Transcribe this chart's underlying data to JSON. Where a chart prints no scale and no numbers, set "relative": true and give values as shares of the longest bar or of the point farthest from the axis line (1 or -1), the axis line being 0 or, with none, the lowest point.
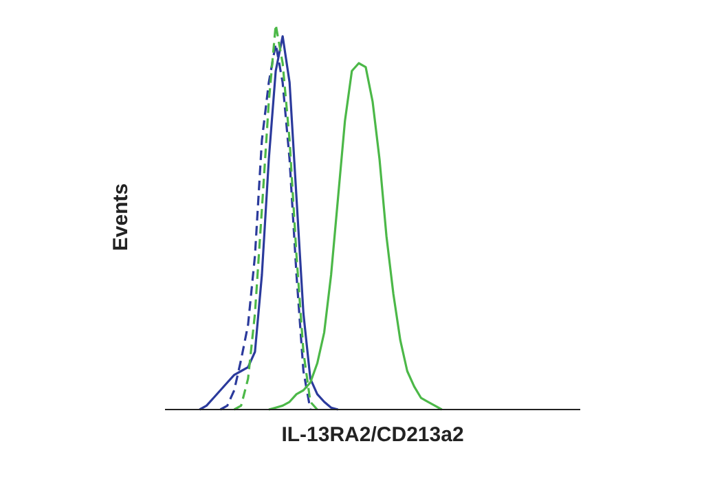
{
  "chart_data": {
    "type": "line",
    "xlabel": "IL-13RA2/CD213a2",
    "ylabel": "Events",
    "relative": true,
    "grid": false,
    "legend": false,
    "marker": "none",
    "categories": [
      null,
      null,
      null,
      null,
      null,
      null,
      null,
      null,
      null,
      null,
      null,
      null,
      null,
      null,
      null,
      null,
      null,
      null,
      null,
      null,
      null,
      null,
      null,
      null,
      null,
      null,
      null,
      null,
      null,
      null,
      null,
      null,
      null,
      null,
      null,
      null,
      null,
      null,
      null,
      null,
      null,
      null,
      null,
      null,
      null,
      null,
      null,
      null,
      null,
      null,
      null,
      null,
      null,
      null,
      null,
      null,
      null,
      null,
      null,
      null,
      null
    ],
    "series": [
      {
        "color": "#2b3a9c",
        "line_style": "solid",
        "values": [
          null,
          null,
          null,
          null,
          null,
          0,
          0.01,
          0.03,
          0.05,
          0.07,
          0.09,
          0.1,
          0.11,
          0.15,
          0.35,
          0.65,
          0.88,
          0.97,
          0.85,
          0.55,
          0.25,
          0.08,
          0.04,
          0.02,
          0.005,
          0,
          null,
          null,
          null,
          null,
          null,
          null,
          null,
          null,
          null,
          null,
          null,
          null,
          null,
          null,
          null,
          null,
          null,
          null,
          null,
          null,
          null,
          null,
          null,
          null,
          null,
          null,
          null,
          null,
          null,
          null,
          null,
          null,
          null,
          null,
          null
        ]
      },
      {
        "color": "#2b3a9c",
        "line_style": "dashed",
        "values": [
          null,
          null,
          null,
          null,
          null,
          null,
          null,
          null,
          0,
          0.01,
          0.05,
          0.13,
          0.22,
          0.4,
          0.7,
          0.85,
          0.95,
          0.85,
          0.65,
          0.35,
          0.1,
          0,
          null,
          null,
          null,
          null,
          null,
          null,
          null,
          null,
          null,
          null,
          null,
          null,
          null,
          null,
          null,
          null,
          null,
          null,
          null,
          null,
          null,
          null,
          null,
          null,
          null,
          null,
          null,
          null,
          null,
          null,
          null,
          null,
          null,
          null,
          null,
          null,
          null,
          null,
          null
        ]
      },
      {
        "color": "#4cb848",
        "line_style": "dashed",
        "values": [
          null,
          null,
          null,
          null,
          null,
          null,
          null,
          null,
          null,
          null,
          0,
          0.01,
          0.08,
          0.25,
          0.52,
          0.8,
          1,
          0.9,
          0.7,
          0.4,
          0.15,
          0.02,
          0,
          null,
          null,
          null,
          null,
          null,
          null,
          null,
          null,
          null,
          null,
          null,
          null,
          null,
          null,
          null,
          null,
          null,
          null,
          null,
          null,
          null,
          null,
          null,
          null,
          null,
          null,
          null,
          null,
          null,
          null,
          null,
          null,
          null,
          null,
          null,
          null,
          null,
          null
        ]
      },
      {
        "color": "#4cb848",
        "line_style": "solid",
        "values": [
          null,
          null,
          null,
          null,
          null,
          null,
          null,
          null,
          null,
          null,
          null,
          null,
          null,
          null,
          null,
          0,
          0.005,
          0.01,
          0.02,
          0.04,
          0.05,
          0.07,
          0.12,
          0.2,
          0.35,
          0.55,
          0.75,
          0.88,
          0.9,
          0.89,
          0.8,
          0.65,
          0.45,
          0.3,
          0.18,
          0.1,
          0.06,
          0.03,
          0.02,
          0.01,
          0,
          null,
          null,
          null,
          null,
          null,
          null,
          null,
          null,
          null,
          null,
          null,
          null,
          null,
          null,
          null,
          null,
          null,
          null,
          null,
          null
        ]
      }
    ]
  }
}
